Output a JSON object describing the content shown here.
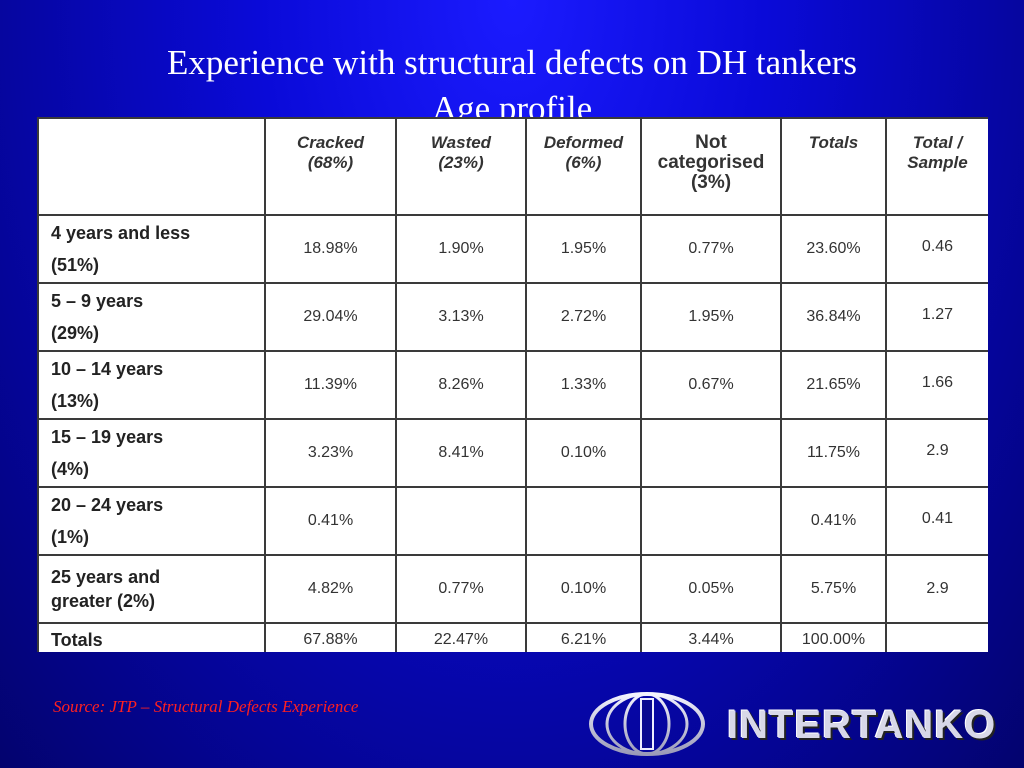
{
  "title_line1": "Experience with structural defects on DH tankers",
  "title_line2": "Age profile",
  "table": {
    "headers": [
      "",
      "Cracked (68%)",
      "Wasted (23%)",
      "Deformed (6%)",
      "Not categorised (3%)",
      "Totals",
      "Total / Sample"
    ],
    "header_lines": {
      "cracked": [
        "Cracked",
        "(68%)"
      ],
      "wasted": [
        "Wasted",
        "(23%)"
      ],
      "deformed": [
        "Deformed",
        "(6%)"
      ],
      "notcat": [
        "Not",
        "categorised",
        "(3%)"
      ],
      "totals": [
        "Totals"
      ],
      "sample": [
        "Total /",
        "Sample"
      ]
    },
    "rows": [
      {
        "label1": "4 years and less",
        "label2": "(51%)",
        "cracked": "18.98%",
        "wasted": "1.90%",
        "deformed": "1.95%",
        "notcat": "0.77%",
        "totals": "23.60%",
        "sample": "0.46"
      },
      {
        "label1": "5 – 9 years",
        "label2": "(29%)",
        "cracked": "29.04%",
        "wasted": "3.13%",
        "deformed": "2.72%",
        "notcat": "1.95%",
        "totals": "36.84%",
        "sample": "1.27"
      },
      {
        "label1": "10 – 14 years",
        "label2": "(13%)",
        "cracked": "11.39%",
        "wasted": "8.26%",
        "deformed": "1.33%",
        "notcat": "0.67%",
        "totals": "21.65%",
        "sample": "1.66"
      },
      {
        "label1": "15 – 19 years",
        "label2": "(4%)",
        "cracked": "3.23%",
        "wasted": "8.41%",
        "deformed": "0.10%",
        "notcat": "",
        "totals": "11.75%",
        "sample": "2.9"
      },
      {
        "label1": "20 – 24 years",
        "label2": "(1%)",
        "cracked": "0.41%",
        "wasted": "",
        "deformed": "",
        "notcat": "",
        "totals": "0.41%",
        "sample": "0.41"
      },
      {
        "label1": "25 years and",
        "label2": "greater (2%)",
        "cracked": "4.82%",
        "wasted": "0.77%",
        "deformed": "0.10%",
        "notcat": "0.05%",
        "totals": "5.75%",
        "sample": "2.9"
      }
    ],
    "totals_row": {
      "label": "Totals",
      "cracked": "67.88%",
      "wasted": "22.47%",
      "deformed": "6.21%",
      "notcat": "3.44%",
      "totals": "100.00%",
      "sample": ""
    }
  },
  "source": "Source: JTP – Structural Defects Experience",
  "logo": {
    "text": "INTERTANKO",
    "icon": "globe-icon"
  },
  "colors": {
    "background": "#0a0ad8",
    "title": "#ffffff",
    "source": "#ff2020",
    "table_bg": "#ffffff"
  }
}
